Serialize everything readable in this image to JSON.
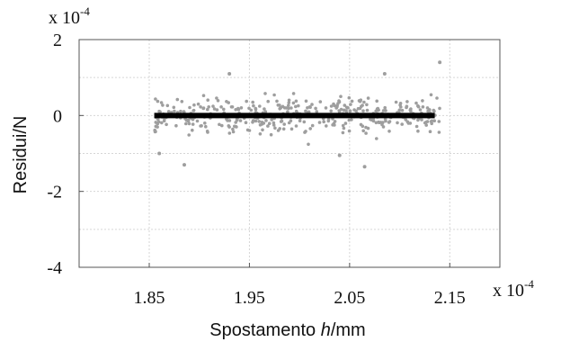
{
  "chart_data": {
    "type": "scatter",
    "title": "",
    "xlabel_prefix": "Spostamento ",
    "xlabel_var": "h",
    "xlabel_unit": "/mm",
    "ylabel": "Residui/N",
    "x_multiplier_label": "x 10",
    "x_multiplier_exp": "-4",
    "y_multiplier_label": "x 10",
    "y_multiplier_exp": "-4",
    "xlim": [
      1.78,
      2.2
    ],
    "ylim": [
      -4,
      2
    ],
    "x_ticks": [
      {
        "value": 1.85,
        "label": "1.85"
      },
      {
        "value": 1.95,
        "label": "1.95"
      },
      {
        "value": 2.05,
        "label": "2.05"
      },
      {
        "value": 2.15,
        "label": "2.15"
      }
    ],
    "y_ticks": [
      {
        "value": 2,
        "label": "2"
      },
      {
        "value": 0,
        "label": "0"
      },
      {
        "value": -2,
        "label": "-2"
      },
      {
        "value": -4,
        "label": "-4"
      }
    ],
    "grid": true,
    "colors": {
      "points": "#9e9e9e",
      "zero_line": "#000000",
      "grid": "#d6d6d6",
      "axes": "#555555"
    },
    "series": [
      {
        "kind": "line",
        "x": [
          1.855,
          2.135
        ],
        "y": [
          0,
          0
        ]
      },
      {
        "kind": "points",
        "x_range": [
          1.855,
          2.14
        ],
        "count": 420,
        "spread": 0.35,
        "outliers": [
          {
            "x": 1.93,
            "y": 1.1
          },
          {
            "x": 2.085,
            "y": 1.1
          },
          {
            "x": 2.14,
            "y": 1.4
          },
          {
            "x": 1.885,
            "y": -1.3
          },
          {
            "x": 2.065,
            "y": -1.35
          },
          {
            "x": 1.86,
            "y": -1.0
          },
          {
            "x": 2.04,
            "y": -1.05
          }
        ]
      }
    ]
  }
}
